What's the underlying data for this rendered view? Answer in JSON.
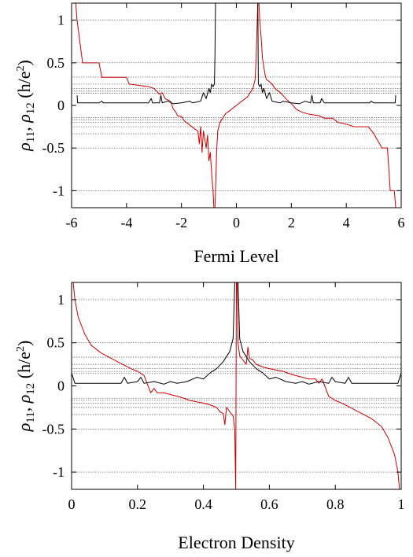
{
  "chart_data": [
    {
      "type": "line",
      "xlabel": "Fermi Level",
      "ylabel": {
        "rho": "ρ",
        "sub11": "11",
        "sep": ", ",
        "sub12": "12",
        "unit_open": " (h/e",
        "unit_sup": "2",
        "unit_close": ")"
      },
      "xlim": [
        -6,
        6
      ],
      "ylim": [
        -1.2,
        1.2
      ],
      "xticks": [
        -6,
        -4,
        -2,
        0,
        2,
        4,
        6
      ],
      "yticks": [
        -1,
        -0.5,
        0,
        0.5,
        1
      ],
      "xtick_labels": [
        "-6",
        "-4",
        "-2",
        "0",
        "2",
        "4",
        "6"
      ],
      "ytick_labels": [
        "-1",
        "-0.5",
        "0",
        "0.5",
        "1"
      ],
      "reference_lines": [
        1.0,
        0.5,
        0.333,
        0.25,
        0.2,
        0.167,
        0.143,
        -0.143,
        -0.167,
        -0.2,
        -0.25,
        -0.333,
        -0.5,
        -1.0
      ],
      "series": [
        {
          "color": "#cc0000",
          "points": [
            [
              -5.85,
              1.2
            ],
            [
              -5.8,
              1.0
            ],
            [
              -5.6,
              0.5
            ],
            [
              -5.0,
              0.5
            ],
            [
              -4.9,
              0.33
            ],
            [
              -4.0,
              0.33
            ],
            [
              -3.9,
              0.25
            ],
            [
              -3.2,
              0.22
            ],
            [
              -3.0,
              0.2
            ],
            [
              -2.8,
              0.13
            ],
            [
              -2.7,
              0.15
            ],
            [
              -2.6,
              0.08
            ],
            [
              -2.4,
              0.05
            ],
            [
              -2.3,
              -0.04
            ],
            [
              -2.2,
              -0.08
            ],
            [
              -2.15,
              -0.12
            ],
            [
              -2.0,
              -0.13
            ],
            [
              -1.9,
              -0.18
            ],
            [
              -1.7,
              -0.23
            ],
            [
              -1.5,
              -0.28
            ],
            [
              -1.4,
              -0.3
            ],
            [
              -1.35,
              -0.45
            ],
            [
              -1.3,
              -0.25
            ],
            [
              -1.25,
              -0.55
            ],
            [
              -1.2,
              -0.3
            ],
            [
              -1.1,
              -0.5
            ],
            [
              -1.05,
              -0.35
            ],
            [
              -1.0,
              -0.65
            ],
            [
              -0.95,
              -0.55
            ],
            [
              -0.9,
              -0.8
            ],
            [
              -0.85,
              -1.0
            ],
            [
              -0.82,
              -1.2
            ],
            [
              -0.8,
              -1.2
            ],
            [
              -0.78,
              -1.2
            ],
            [
              -0.75,
              -0.9
            ],
            [
              -0.72,
              -0.55
            ],
            [
              -0.68,
              -0.3
            ],
            [
              -0.6,
              -0.2
            ],
            [
              -0.4,
              -0.1
            ],
            [
              -0.2,
              -0.05
            ],
            [
              0,
              0
            ],
            [
              0.2,
              0.05
            ],
            [
              0.4,
              0.1
            ],
            [
              0.6,
              0.2
            ],
            [
              0.68,
              0.3
            ],
            [
              0.72,
              0.55
            ],
            [
              0.75,
              0.9
            ],
            [
              0.78,
              1.2
            ],
            [
              0.8,
              1.2
            ],
            [
              0.82,
              1.2
            ],
            [
              0.85,
              1.0
            ],
            [
              0.9,
              0.8
            ],
            [
              0.95,
              0.55
            ],
            [
              1.0,
              0.45
            ],
            [
              1.05,
              0.35
            ],
            [
              1.1,
              0.3
            ],
            [
              1.2,
              0.28
            ],
            [
              1.3,
              0.25
            ],
            [
              1.4,
              0.2
            ],
            [
              1.6,
              0.15
            ],
            [
              1.8,
              0.08
            ],
            [
              2.0,
              0.02
            ],
            [
              2.2,
              -0.05
            ],
            [
              2.4,
              -0.08
            ],
            [
              2.6,
              -0.1
            ],
            [
              3.0,
              -0.12
            ],
            [
              3.2,
              -0.15
            ],
            [
              3.5,
              -0.15
            ],
            [
              3.7,
              -0.2
            ],
            [
              4.0,
              -0.22
            ],
            [
              4.3,
              -0.25
            ],
            [
              4.8,
              -0.25
            ],
            [
              5.0,
              -0.33
            ],
            [
              5.3,
              -0.5
            ],
            [
              5.5,
              -0.5
            ],
            [
              5.6,
              -1.0
            ],
            [
              5.75,
              -1.0
            ],
            [
              5.8,
              -1.2
            ]
          ]
        },
        {
          "color": "#000000",
          "points": [
            [
              -5.8,
              0.12
            ],
            [
              -5.78,
              0.03
            ],
            [
              -5.0,
              0.03
            ],
            [
              -4.9,
              0.05
            ],
            [
              -4.85,
              0.03
            ],
            [
              -3.2,
              0.03
            ],
            [
              -3.1,
              0.08
            ],
            [
              -3.05,
              0.03
            ],
            [
              -2.8,
              0.03
            ],
            [
              -2.75,
              0.12
            ],
            [
              -2.7,
              0.03
            ],
            [
              -2.5,
              0.05
            ],
            [
              -2.3,
              0.02
            ],
            [
              -2.0,
              0.03
            ],
            [
              -1.7,
              0.05
            ],
            [
              -1.6,
              0.03
            ],
            [
              -1.3,
              0.05
            ],
            [
              -1.2,
              0.15
            ],
            [
              -1.1,
              0.08
            ],
            [
              -1.0,
              0.2
            ],
            [
              -0.95,
              0.15
            ],
            [
              -0.9,
              0.25
            ],
            [
              -0.85,
              0.22
            ],
            [
              -0.8,
              0.25
            ],
            [
              -0.78,
              0.6
            ],
            [
              -0.76,
              1.2
            ],
            [
              0.78,
              1.2
            ],
            [
              0.8,
              0.25
            ],
            [
              0.85,
              0.22
            ],
            [
              0.9,
              0.25
            ],
            [
              0.95,
              0.15
            ],
            [
              1.0,
              0.2
            ],
            [
              1.1,
              0.08
            ],
            [
              1.2,
              0.15
            ],
            [
              1.3,
              0.05
            ],
            [
              1.6,
              0.03
            ],
            [
              1.7,
              0.05
            ],
            [
              2.0,
              0.03
            ],
            [
              2.3,
              0.02
            ],
            [
              2.5,
              0.05
            ],
            [
              2.7,
              0.03
            ],
            [
              2.75,
              0.12
            ],
            [
              2.8,
              0.03
            ],
            [
              3.05,
              0.03
            ],
            [
              3.1,
              0.08
            ],
            [
              3.2,
              0.03
            ],
            [
              4.85,
              0.03
            ],
            [
              4.9,
              0.05
            ],
            [
              5.0,
              0.03
            ],
            [
              5.78,
              0.03
            ],
            [
              5.8,
              0.12
            ]
          ]
        }
      ]
    },
    {
      "type": "line",
      "xlabel": "Electron Density",
      "ylabel": {
        "rho": "ρ",
        "sub11": "11",
        "sep": ", ",
        "sub12": "12",
        "unit_open": " (h/e",
        "unit_sup": "2",
        "unit_close": ")"
      },
      "xlim": [
        0,
        1
      ],
      "ylim": [
        -1.2,
        1.2
      ],
      "xticks": [
        0,
        0.2,
        0.4,
        0.6,
        0.8,
        1
      ],
      "yticks": [
        -1,
        -0.5,
        0,
        0.5,
        1
      ],
      "xtick_labels": [
        "0",
        "0.2",
        "0.4",
        "0.6",
        "0.8",
        "1"
      ],
      "ytick_labels": [
        "-1",
        "-0.5",
        "0",
        "0.5",
        "1"
      ],
      "reference_lines": [
        1.0,
        0.5,
        0.333,
        0.25,
        0.2,
        0.167,
        0.143,
        -0.143,
        -0.167,
        -0.2,
        -0.25,
        -0.333,
        -0.5,
        -1.0
      ],
      "series": [
        {
          "color": "#cc0000",
          "points": [
            [
              0.005,
              1.2
            ],
            [
              0.01,
              1.0
            ],
            [
              0.02,
              0.8
            ],
            [
              0.04,
              0.6
            ],
            [
              0.06,
              0.47
            ],
            [
              0.09,
              0.38
            ],
            [
              0.12,
              0.32
            ],
            [
              0.15,
              0.26
            ],
            [
              0.18,
              0.2
            ],
            [
              0.2,
              0.17
            ],
            [
              0.22,
              0.12
            ],
            [
              0.23,
              0.02
            ],
            [
              0.24,
              -0.08
            ],
            [
              0.25,
              -0.03
            ],
            [
              0.26,
              -0.08
            ],
            [
              0.28,
              -0.08
            ],
            [
              0.3,
              -0.1
            ],
            [
              0.33,
              -0.13
            ],
            [
              0.36,
              -0.17
            ],
            [
              0.4,
              -0.2
            ],
            [
              0.42,
              -0.22
            ],
            [
              0.44,
              -0.25
            ],
            [
              0.45,
              -0.3
            ],
            [
              0.46,
              -0.32
            ],
            [
              0.465,
              -0.45
            ],
            [
              0.47,
              -0.25
            ],
            [
              0.48,
              -0.3
            ],
            [
              0.49,
              -0.35
            ],
            [
              0.495,
              -0.5
            ],
            [
              0.498,
              -1.2
            ],
            [
              0.5,
              1.2
            ],
            [
              0.502,
              1.2
            ],
            [
              0.505,
              0.5
            ],
            [
              0.51,
              0.35
            ],
            [
              0.52,
              0.3
            ],
            [
              0.53,
              0.25
            ],
            [
              0.535,
              0.45
            ],
            [
              0.54,
              0.32
            ],
            [
              0.55,
              0.3
            ],
            [
              0.56,
              0.25
            ],
            [
              0.58,
              0.22
            ],
            [
              0.6,
              0.2
            ],
            [
              0.64,
              0.17
            ],
            [
              0.67,
              0.13
            ],
            [
              0.7,
              0.1
            ],
            [
              0.72,
              0.08
            ],
            [
              0.74,
              0.08
            ],
            [
              0.75,
              0.03
            ],
            [
              0.76,
              0.08
            ],
            [
              0.77,
              -0.02
            ],
            [
              0.78,
              -0.12
            ],
            [
              0.8,
              -0.17
            ],
            [
              0.82,
              -0.2
            ],
            [
              0.85,
              -0.26
            ],
            [
              0.88,
              -0.32
            ],
            [
              0.91,
              -0.38
            ],
            [
              0.94,
              -0.47
            ],
            [
              0.96,
              -0.6
            ],
            [
              0.98,
              -0.8
            ],
            [
              0.99,
              -1.0
            ],
            [
              0.995,
              -1.2
            ]
          ]
        },
        {
          "color": "#000000",
          "points": [
            [
              0.0,
              0.15
            ],
            [
              0.01,
              0.03
            ],
            [
              0.15,
              0.03
            ],
            [
              0.16,
              0.1
            ],
            [
              0.17,
              0.03
            ],
            [
              0.2,
              0.05
            ],
            [
              0.21,
              0.1
            ],
            [
              0.22,
              0.03
            ],
            [
              0.25,
              0.05
            ],
            [
              0.28,
              0.02
            ],
            [
              0.3,
              0.05
            ],
            [
              0.32,
              0.03
            ],
            [
              0.35,
              0.05
            ],
            [
              0.38,
              0.1
            ],
            [
              0.4,
              0.08
            ],
            [
              0.42,
              0.15
            ],
            [
              0.44,
              0.2
            ],
            [
              0.46,
              0.28
            ],
            [
              0.48,
              0.4
            ],
            [
              0.49,
              0.55
            ],
            [
              0.495,
              1.2
            ],
            [
              0.505,
              1.2
            ],
            [
              0.51,
              0.55
            ],
            [
              0.52,
              0.4
            ],
            [
              0.54,
              0.28
            ],
            [
              0.56,
              0.2
            ],
            [
              0.58,
              0.15
            ],
            [
              0.6,
              0.08
            ],
            [
              0.62,
              0.1
            ],
            [
              0.65,
              0.05
            ],
            [
              0.68,
              0.03
            ],
            [
              0.7,
              0.05
            ],
            [
              0.72,
              0.02
            ],
            [
              0.75,
              0.05
            ],
            [
              0.78,
              0.03
            ],
            [
              0.79,
              0.1
            ],
            [
              0.8,
              0.05
            ],
            [
              0.83,
              0.03
            ],
            [
              0.84,
              0.1
            ],
            [
              0.85,
              0.03
            ],
            [
              0.99,
              0.03
            ],
            [
              1.0,
              0.15
            ]
          ]
        }
      ]
    }
  ]
}
